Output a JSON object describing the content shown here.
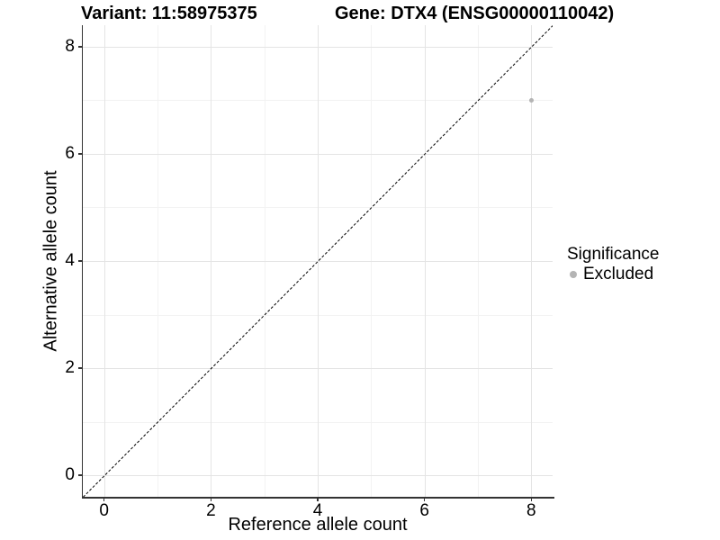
{
  "header": {
    "variant_title": "Variant: 11:58975375",
    "gene_title": "Gene: DTX4 (ENSG00000110042)"
  },
  "legend": {
    "title": "Significance",
    "items": [
      {
        "label": "Excluded",
        "color": "#b4b4b4"
      }
    ]
  },
  "chart_data": {
    "type": "scatter",
    "titles": [
      "Variant: 11:58975375",
      "Gene: DTX4 (ENSG00000110042)"
    ],
    "xlabel": "Reference allele count",
    "ylabel": "Alternative allele count",
    "xlim": [
      -0.4,
      8.4
    ],
    "ylim": [
      -0.4,
      8.4
    ],
    "x_major_ticks": [
      0,
      2,
      4,
      6,
      8
    ],
    "y_major_ticks": [
      0,
      2,
      4,
      6,
      8
    ],
    "x_minor_gridlines": [
      1,
      3,
      5,
      7
    ],
    "y_minor_gridlines": [
      1,
      3,
      5,
      7
    ],
    "grid": "major and minor, faint gray on white panel",
    "legend_position": "right",
    "series": [
      {
        "name": "Excluded",
        "color": "#b4b4b4",
        "points": [
          {
            "x": 8,
            "y": 7
          }
        ]
      }
    ],
    "annotations": [
      {
        "type": "identity-line",
        "style": "dashed",
        "color": "#000000",
        "from": [
          -0.4,
          -0.4
        ],
        "to": [
          8.4,
          8.4
        ]
      }
    ],
    "colors": {
      "major_grid": "#e4e4e4",
      "minor_grid": "#f2f2f2",
      "axis_line": "#333333",
      "point": "#b4b4b4"
    }
  }
}
